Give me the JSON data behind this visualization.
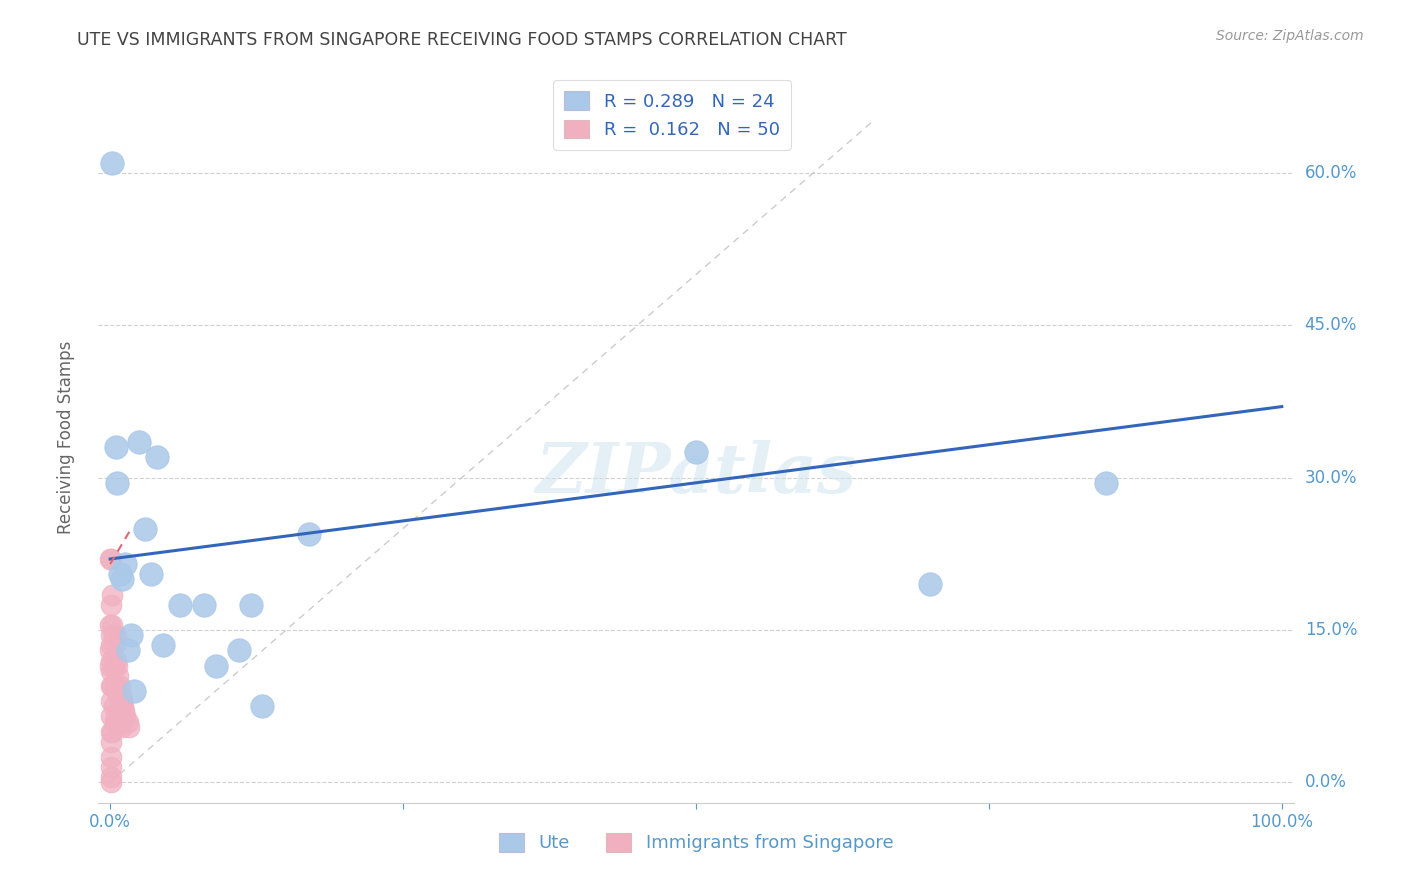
{
  "title": "UTE VS IMMIGRANTS FROM SINGAPORE RECEIVING FOOD STAMPS CORRELATION CHART",
  "source": "Source: ZipAtlas.com",
  "ylabel": "Receiving Food Stamps",
  "yticks": [
    0.0,
    0.15,
    0.3,
    0.45,
    0.6
  ],
  "ytick_labels_right": [
    "0.0%",
    "15.0%",
    "30.0%",
    "45.0%",
    "60.0%"
  ],
  "legend_blue_R": "0.289",
  "legend_blue_N": "24",
  "legend_pink_R": "0.162",
  "legend_pink_N": "50",
  "legend_blue_label": "Ute",
  "legend_pink_label": "Immigrants from Singapore",
  "blue_color": "#aac8e8",
  "pink_color": "#f0b0c0",
  "trendline_blue_color": "#3366bb",
  "trendline_pink_color": "#dd6677",
  "background_color": "#ffffff",
  "grid_color": "#d0d0d0",
  "axis_label_color": "#5599cc",
  "title_color": "#444444",
  "watermark": "ZIPatlas",
  "ute_x": [
    0.002,
    0.005,
    0.006,
    0.008,
    0.01,
    0.013,
    0.015,
    0.018,
    0.02,
    0.025,
    0.03,
    0.035,
    0.04,
    0.045,
    0.06,
    0.08,
    0.09,
    0.11,
    0.12,
    0.13,
    0.17,
    0.5,
    0.7,
    0.85
  ],
  "ute_y": [
    0.61,
    0.33,
    0.295,
    0.205,
    0.2,
    0.215,
    0.13,
    0.145,
    0.09,
    0.335,
    0.25,
    0.205,
    0.32,
    0.135,
    0.175,
    0.175,
    0.115,
    0.13,
    0.175,
    0.075,
    0.245,
    0.325,
    0.195,
    0.295
  ],
  "singapore_x": [
    0.0,
    0.0,
    0.0,
    0.0,
    0.001,
    0.001,
    0.001,
    0.001,
    0.001,
    0.001,
    0.001,
    0.001,
    0.001,
    0.001,
    0.001,
    0.001,
    0.001,
    0.001,
    0.001,
    0.002,
    0.002,
    0.002,
    0.002,
    0.003,
    0.003,
    0.003,
    0.004,
    0.004,
    0.004,
    0.005,
    0.005,
    0.005,
    0.005,
    0.006,
    0.006,
    0.006,
    0.007,
    0.007,
    0.007,
    0.008,
    0.008,
    0.009,
    0.009,
    0.01,
    0.01,
    0.011,
    0.012,
    0.013,
    0.015,
    0.016
  ],
  "singapore_y": [
    0.22,
    0.155,
    0.13,
    0.115,
    0.22,
    0.175,
    0.145,
    0.135,
    0.12,
    0.11,
    0.095,
    0.08,
    0.065,
    0.05,
    0.04,
    0.025,
    0.015,
    0.005,
    0.0,
    0.185,
    0.155,
    0.095,
    0.05,
    0.145,
    0.115,
    0.075,
    0.135,
    0.095,
    0.06,
    0.145,
    0.12,
    0.095,
    0.065,
    0.115,
    0.09,
    0.06,
    0.105,
    0.085,
    0.06,
    0.095,
    0.07,
    0.085,
    0.06,
    0.08,
    0.055,
    0.075,
    0.07,
    0.065,
    0.06,
    0.055
  ],
  "blue_trendline_x0": 0.0,
  "blue_trendline_x1": 1.0,
  "blue_trendline_y0": 0.22,
  "blue_trendline_y1": 0.37,
  "pink_trendline_x0": 0.0,
  "pink_trendline_x1": 0.018,
  "pink_trendline_y0": 0.215,
  "pink_trendline_y1": 0.25,
  "xlim": [
    -0.01,
    1.01
  ],
  "ylim": [
    -0.02,
    0.7
  ]
}
